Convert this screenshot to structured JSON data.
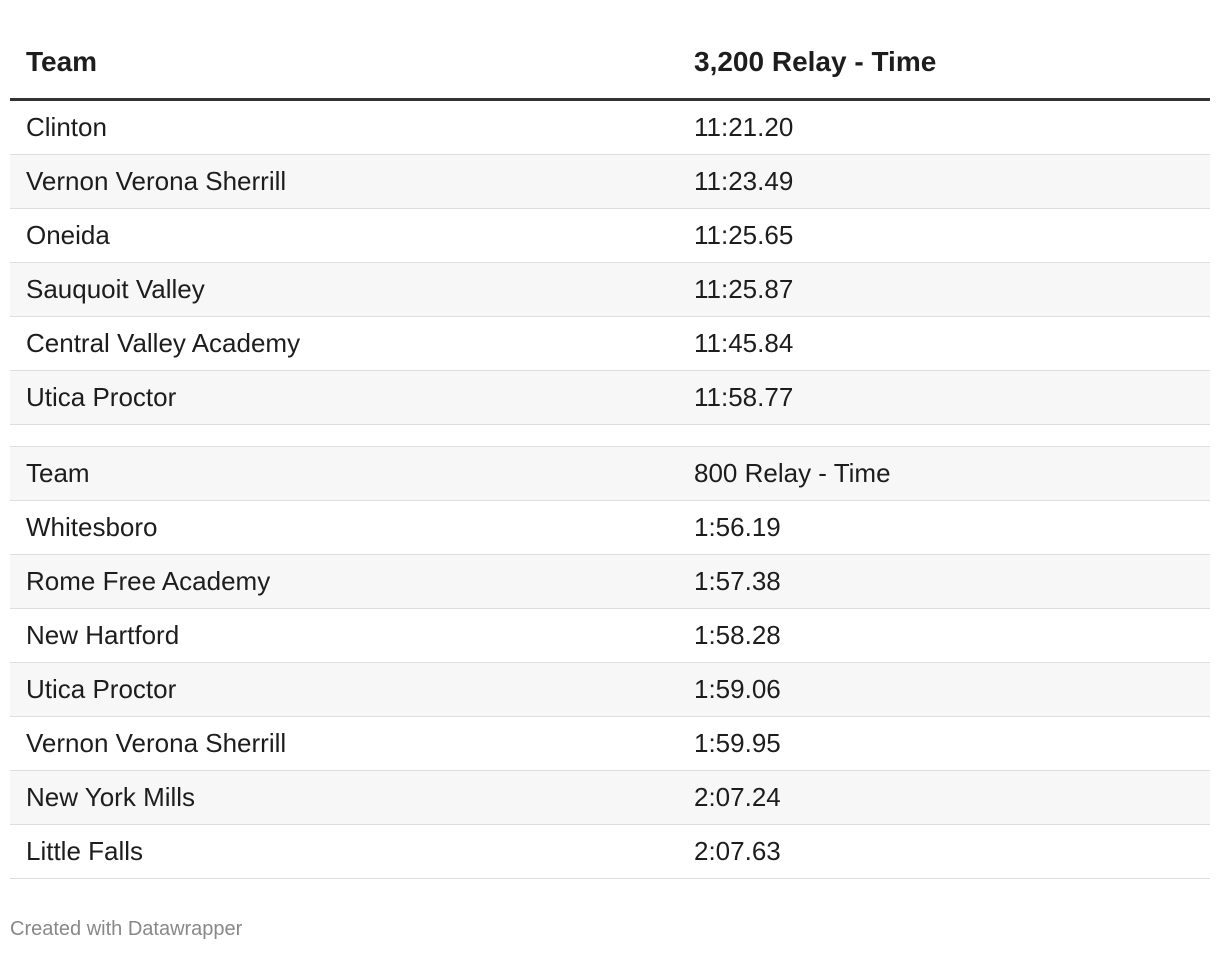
{
  "table": {
    "header": [
      "Team",
      "3,200 Relay - Time"
    ],
    "sections": [
      {
        "rows": [
          [
            "Clinton",
            "11:21.20"
          ],
          [
            "Vernon Verona Sherrill",
            "11:23.49"
          ],
          [
            "Oneida",
            "11:25.65"
          ],
          [
            "Sauquoit Valley",
            "11:25.87"
          ],
          [
            "Central Valley Academy",
            "11:45.84"
          ],
          [
            "Utica Proctor",
            "11:58.77"
          ]
        ]
      },
      {
        "rows": [
          [
            "Team",
            "800 Relay - Time"
          ],
          [
            "Whitesboro",
            "1:56.19"
          ],
          [
            "Rome Free Academy",
            "1:57.38"
          ],
          [
            "New Hartford",
            "1:58.28"
          ],
          [
            "Utica Proctor",
            "1:59.06"
          ],
          [
            "Vernon Verona Sherrill",
            "1:59.95"
          ],
          [
            "New York Mills",
            "2:07.24"
          ],
          [
            "Little Falls",
            "2:07.63"
          ]
        ]
      }
    ]
  },
  "footer": "Created with Datawrapper"
}
